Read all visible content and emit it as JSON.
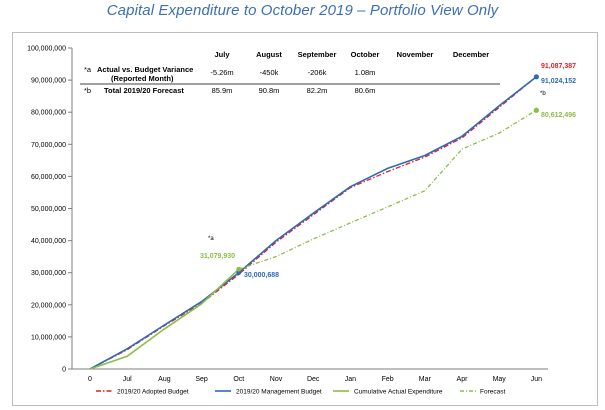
{
  "chart_data": {
    "type": "line",
    "title": "Capital Expenditure to October 2019 – Portfolio View Only",
    "x_ticks": [
      "0",
      "Jul",
      "Aug",
      "Sep",
      "Oct",
      "Nov",
      "Dec",
      "Jan",
      "Feb",
      "Mar",
      "Apr",
      "May",
      "Jun"
    ],
    "y_ticks": [
      "0",
      "10,000,000",
      "20,000,000",
      "30,000,000",
      "40,000,000",
      "50,000,000",
      "60,000,000",
      "70,000,000",
      "80,000,000",
      "90,000,000",
      "100,000,000"
    ],
    "ylim": [
      0,
      100000000
    ],
    "grid": false,
    "legend_position": "bottom",
    "series": [
      {
        "name": "2019/20 Adopted Budget",
        "color": "#e31d23",
        "style": "dash-dot",
        "values": [
          0,
          6000000,
          13500000,
          20500000,
          29500000,
          39500000,
          48000000,
          56500000,
          61500000,
          66000000,
          72000000,
          81500000,
          91087387
        ]
      },
      {
        "name": "2019/20 Management Budget",
        "color": "#2e6ab5",
        "style": "solid",
        "values": [
          0,
          6300000,
          13700000,
          21000000,
          30000688,
          40000000,
          48500000,
          56800000,
          62500000,
          66500000,
          72500000,
          82000000,
          91024152
        ]
      },
      {
        "name": "Cumulative Actual Expenditure",
        "color": "#8cbd45",
        "style": "solid",
        "values": [
          0,
          4000000,
          12500000,
          20300000,
          31079930
        ]
      },
      {
        "name": "Forecast",
        "color": "#8cbd45",
        "style": "dash-dot",
        "values": [
          null,
          null,
          null,
          null,
          31079930,
          35000000,
          40500000,
          45500000,
          50500000,
          55500000,
          68500000,
          73500000,
          80612496
        ]
      }
    ],
    "data_labels": [
      {
        "text": "91,087,387",
        "color": "#e31d23"
      },
      {
        "text": "91,024,152",
        "color": "#2e6ab5"
      },
      {
        "text": "80,612,496",
        "color": "#8cbd45"
      },
      {
        "text": "31,079,930",
        "color": "#8cbd45"
      },
      {
        "text": "30,000,688",
        "color": "#2e6ab5"
      }
    ],
    "annotations": [
      "*a",
      "*b"
    ],
    "table": {
      "row_a_marker": "*a",
      "row_b_marker": "*b",
      "row_a_label_line1": "Actual vs. Budget Variance",
      "row_a_label_line2": "(Reported Month)",
      "row_b_label": "Total 2019/20 Forecast",
      "months": [
        "July",
        "August",
        "September",
        "October",
        "November",
        "December"
      ],
      "variance": [
        "-5.26m",
        "-450k",
        "-206k",
        "1.08m",
        "",
        ""
      ],
      "forecast": [
        "85.9m",
        "90.8m",
        "82.2m",
        "80.6m",
        "",
        ""
      ]
    }
  }
}
